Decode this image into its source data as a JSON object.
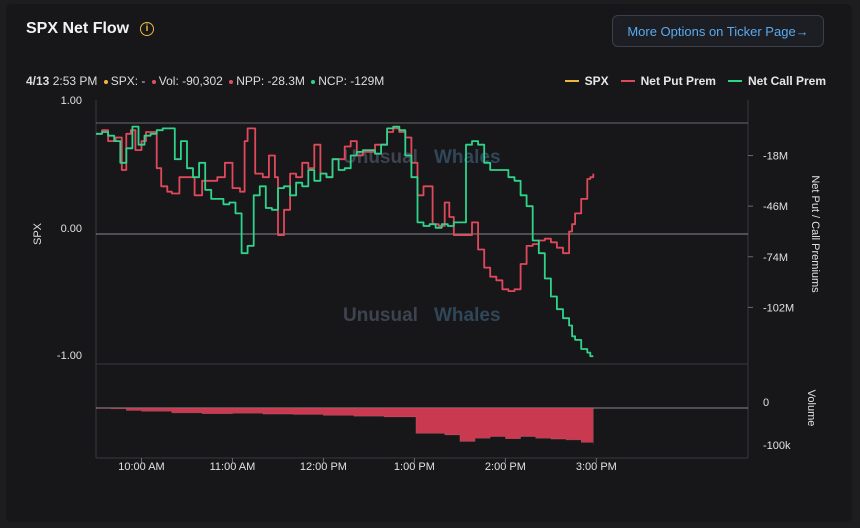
{
  "header": {
    "title": "SPX Net Flow",
    "info_icon": "info-icon",
    "more_options_label": "More Options on Ticker Page",
    "more_options_arrow": "→"
  },
  "status": {
    "date": "4/13",
    "time": "2:53 PM",
    "spx": "SPX: -",
    "vol": "Vol: -90,302",
    "npp": "NPP: -28.3M",
    "ncp": "NCP: -129M",
    "colors": {
      "spx": "#f0b73d",
      "vol": "#e0505e",
      "npp": "#e0505e",
      "ncp": "#2fd38b"
    }
  },
  "watermark": {
    "word1": "Unusual",
    "word2": "Whales"
  },
  "chart_data": {
    "type": "line",
    "title": "",
    "legend": [
      {
        "name": "SPX",
        "color": "#f0b73d"
      },
      {
        "name": "Net Put Prem",
        "color": "#e0485b"
      },
      {
        "name": "Net Call Prem",
        "color": "#2fd38b"
      }
    ],
    "legend_position": "top-right",
    "left_axis": {
      "label": "SPX",
      "ticks": [
        "1.00",
        "0.00",
        "-1.00"
      ],
      "ylim": [
        -1,
        1
      ]
    },
    "right_axis": {
      "label": "Net Put / Call Premiums",
      "ticks": [
        "-18M",
        "-46M",
        "-74M",
        "-102M"
      ],
      "unit": "M",
      "ylim": [
        -130,
        0
      ]
    },
    "volume_axis": {
      "label": "Volume",
      "ticks": [
        "0",
        "-100k"
      ],
      "ylim": [
        -110000,
        0
      ]
    },
    "x_ticks": [
      "10:00 AM",
      "11:00 AM",
      "12:00 PM",
      "1:00 PM",
      "2:00 PM",
      "3:00 PM"
    ],
    "x_tick_minutes": [
      600,
      660,
      720,
      780,
      840,
      900
    ],
    "x_range_minutes": [
      570,
      1000
    ],
    "series": [
      {
        "name": "Net Put Prem",
        "color": "#e0485b",
        "x": [
          570,
          574,
          578,
          583,
          587,
          590,
          593,
          596,
          600,
          603,
          606,
          610,
          613,
          617,
          620,
          625,
          630,
          635,
          640,
          645,
          650,
          655,
          660,
          665,
          668,
          670,
          675,
          680,
          684,
          688,
          690,
          694,
          698,
          702,
          706,
          710,
          714,
          718,
          722,
          726,
          730,
          734,
          738,
          742,
          746,
          750,
          754,
          758,
          762,
          766,
          770,
          774,
          778,
          782,
          786,
          789,
          792,
          796,
          800,
          803,
          806,
          810,
          814,
          818,
          822,
          826,
          830,
          834,
          838,
          842,
          846,
          850,
          854,
          858,
          862,
          866,
          870,
          874,
          878,
          882,
          884,
          886,
          890,
          894,
          896,
          898
        ],
        "values": [
          -6,
          -4,
          -10,
          -8,
          -26,
          -6,
          -4,
          -15,
          -10,
          -5,
          -5,
          -25,
          -35,
          -38,
          -39,
          -30,
          -30,
          -40,
          -32,
          -32,
          -30,
          -22,
          -36,
          -38,
          -10,
          -3,
          -28,
          -30,
          -18,
          -30,
          -62,
          -48,
          -28,
          -30,
          -22,
          -25,
          -12,
          -28,
          -30,
          -20,
          -20,
          -13,
          -10,
          -18,
          -16,
          -16,
          -12,
          -12,
          -5,
          -3,
          -5,
          -8,
          -22,
          -40,
          -35,
          -35,
          -56,
          -57,
          -44,
          -52,
          -62,
          -62,
          -62,
          -55,
          -70,
          -80,
          -85,
          -87,
          -92,
          -93,
          -92,
          -78,
          -68,
          -67,
          -65,
          -64,
          -66,
          -69,
          -72,
          -60,
          -56,
          -50,
          -42,
          -31,
          -30,
          -28
        ]
      },
      {
        "name": "Net Call Prem",
        "color": "#2fd38b",
        "x": [
          570,
          574,
          578,
          582,
          586,
          590,
          594,
          598,
          602,
          606,
          610,
          614,
          618,
          622,
          626,
          630,
          634,
          638,
          642,
          646,
          650,
          654,
          658,
          662,
          666,
          670,
          674,
          678,
          682,
          686,
          690,
          694,
          698,
          702,
          706,
          710,
          714,
          718,
          722,
          726,
          730,
          734,
          738,
          742,
          746,
          750,
          754,
          758,
          762,
          766,
          770,
          774,
          778,
          782,
          786,
          790,
          794,
          798,
          802,
          806,
          810,
          814,
          818,
          822,
          826,
          830,
          834,
          838,
          842,
          846,
          850,
          854,
          858,
          862,
          866,
          870,
          874,
          878,
          882,
          884,
          886,
          890,
          894,
          896,
          898
        ],
        "values": [
          -6,
          -5,
          -7,
          -10,
          -22,
          -14,
          -2,
          -12,
          -7,
          -6,
          -4,
          -3,
          -3,
          -20,
          -10,
          -25,
          -30,
          -22,
          -37,
          -42,
          -42,
          -45,
          -44,
          -50,
          -72,
          -68,
          -40,
          -35,
          -47,
          -48,
          -36,
          -35,
          -40,
          -33,
          -35,
          -26,
          -32,
          -28,
          -30,
          -20,
          -26,
          -25,
          -18,
          -16,
          -15,
          -15,
          -17,
          -12,
          -3,
          -2,
          -4,
          -18,
          -30,
          -55,
          -57,
          -56,
          -58,
          -56,
          -57,
          -55,
          -55,
          -12,
          -10,
          -12,
          -22,
          -26,
          -26,
          -26,
          -30,
          -32,
          -40,
          -46,
          -65,
          -72,
          -86,
          -96,
          -103,
          -108,
          -112,
          -118,
          -120,
          -125,
          -127,
          -129,
          -129
        ]
      }
    ],
    "volume": {
      "color": "#c9394f",
      "x": [
        570,
        580,
        590,
        600,
        620,
        640,
        660,
        680,
        700,
        720,
        740,
        760,
        780,
        781,
        800,
        810,
        820,
        830,
        840,
        850,
        860,
        870,
        880,
        890,
        898
      ],
      "values": [
        -1000,
        -2000,
        -6000,
        -8000,
        -12000,
        -14000,
        -13000,
        -15000,
        -16000,
        -18000,
        -20000,
        -22000,
        -22000,
        -62000,
        -66000,
        -82000,
        -74000,
        -70000,
        -75000,
        -70000,
        -74000,
        -76000,
        -78000,
        -84000,
        -90302
      ]
    }
  }
}
